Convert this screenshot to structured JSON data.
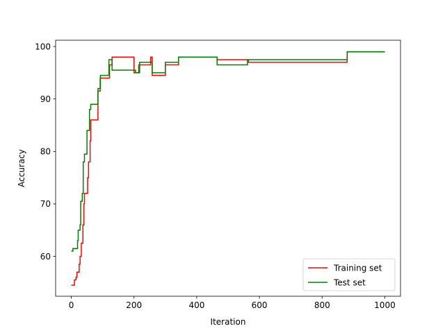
{
  "chart_data": {
    "type": "line",
    "title": "",
    "xlabel": "Iteration",
    "ylabel": "Accuracy",
    "xlim": [
      -50,
      1050
    ],
    "ylim": [
      52.4,
      101.2
    ],
    "xticks": [
      0,
      200,
      400,
      600,
      800,
      1000
    ],
    "yticks": [
      60,
      70,
      80,
      90,
      100
    ],
    "xtick_labels": [
      "0",
      "200",
      "400",
      "600",
      "800",
      "1000"
    ],
    "ytick_labels": [
      "60",
      "70",
      "80",
      "90",
      "100"
    ],
    "grid": false,
    "legend_position": "bottom-right",
    "step": true,
    "series": [
      {
        "name": "Training set",
        "color": "#ff0000",
        "points": [
          [
            0,
            54.5
          ],
          [
            10,
            55.5
          ],
          [
            15,
            56.0
          ],
          [
            18,
            57.0
          ],
          [
            25,
            58.5
          ],
          [
            28,
            60.0
          ],
          [
            32,
            62.5
          ],
          [
            37,
            66.0
          ],
          [
            40,
            70.0
          ],
          [
            42,
            72.0
          ],
          [
            52,
            75.0
          ],
          [
            55,
            78.0
          ],
          [
            60,
            82.0
          ],
          [
            62,
            86.0
          ],
          [
            85,
            91.5
          ],
          [
            92,
            94.0
          ],
          [
            122,
            96.5
          ],
          [
            130,
            98.0
          ],
          [
            200,
            95.0
          ],
          [
            215,
            96.5
          ],
          [
            253,
            98.0
          ],
          [
            258,
            94.5
          ],
          [
            300,
            96.5
          ],
          [
            342,
            98.0
          ],
          [
            465,
            97.5
          ],
          [
            565,
            97.0
          ],
          [
            880,
            99.0
          ],
          [
            1000,
            99.0
          ]
        ]
      },
      {
        "name": "Test set",
        "color": "#008000",
        "points": [
          [
            0,
            61.0
          ],
          [
            5,
            61.5
          ],
          [
            20,
            63.0
          ],
          [
            22,
            65.0
          ],
          [
            28,
            66.0
          ],
          [
            30,
            70.5
          ],
          [
            35,
            72.0
          ],
          [
            38,
            78.0
          ],
          [
            42,
            79.5
          ],
          [
            50,
            84.0
          ],
          [
            58,
            88.0
          ],
          [
            62,
            89.0
          ],
          [
            85,
            92.0
          ],
          [
            93,
            94.5
          ],
          [
            120,
            97.5
          ],
          [
            130,
            95.5
          ],
          [
            205,
            95.0
          ],
          [
            218,
            97.0
          ],
          [
            258,
            95.0
          ],
          [
            300,
            97.0
          ],
          [
            342,
            98.0
          ],
          [
            465,
            96.5
          ],
          [
            562,
            97.5
          ],
          [
            880,
            99.0
          ],
          [
            1000,
            99.0
          ]
        ]
      }
    ]
  }
}
